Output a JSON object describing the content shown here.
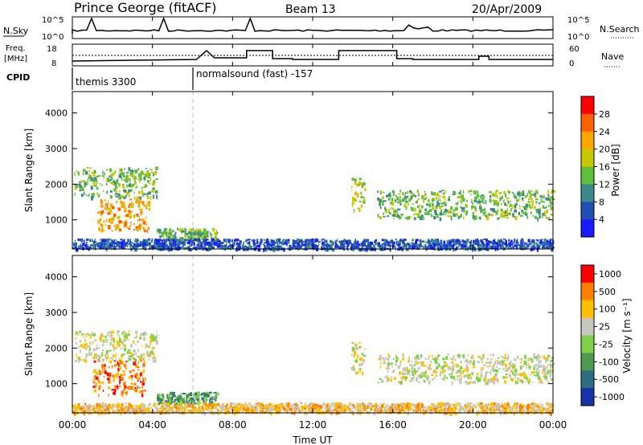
{
  "header": {
    "station": "Prince George (fitACF)",
    "beam": "Beam 13",
    "date": "20/Apr/2009"
  },
  "summary": {
    "nsky_label": "N.Sky",
    "nsky_ticks": [
      "10^5",
      "10^0"
    ],
    "nsearch_label": "N.Search",
    "nsearch_ticks": [
      "10^5",
      "10^0"
    ],
    "freq_label_1": "Freq.",
    "freq_label_2": "[MHz]",
    "freq_ticks": [
      "18",
      "8"
    ],
    "nave_label": "Nave",
    "nave_ticks": [
      "60",
      "0"
    ],
    "cpid_label": "CPID",
    "cpid_modes": [
      {
        "name": "themis 3300",
        "start_hour": 0
      },
      {
        "name": "normalsound (fast) -157",
        "start_hour": 6
      }
    ]
  },
  "x_ticks": [
    "00:00",
    "04:00",
    "08:00",
    "12:00",
    "16:00",
    "20:00",
    "00:00"
  ],
  "x_label": "Time UT",
  "power_panel": {
    "ylabel": "Slant Range [km]",
    "yticks": [
      "1000",
      "2000",
      "3000",
      "4000"
    ],
    "colorbar_label": "Power [dB]",
    "colorbar_ticks": [
      "4",
      "8",
      "12",
      "16",
      "20",
      "24",
      "28"
    ]
  },
  "velocity_panel": {
    "ylabel": "Slant Range [km]",
    "yticks": [
      "1000",
      "2000",
      "3000",
      "4000"
    ],
    "colorbar_label": "Velocity [m s⁻¹]",
    "colorbar_ticks": [
      "1000",
      "500",
      "100",
      "25",
      "-25",
      "-100",
      "-500",
      "-1000"
    ]
  },
  "colors": {
    "power_scale": [
      "#1a1aff",
      "#1f4fb0",
      "#3a8a8a",
      "#5fbf3c",
      "#c8c800",
      "#ffa500",
      "#ff6000",
      "#ff0000"
    ],
    "velocity_scale": [
      "#1830a8",
      "#2f6e7e",
      "#4f9a4f",
      "#7fd04a",
      "#c8c8c0",
      "#ffc000",
      "#ff8000",
      "#ff0000"
    ]
  },
  "chart_data": {
    "type": "heatmap",
    "x_unit": "hours UT",
    "xlim": [
      0,
      24
    ],
    "ylim": [
      180,
      4600
    ],
    "y_unit": "km",
    "power_regions": [
      {
        "t0": 0.1,
        "t1": 4.2,
        "r0": 1650,
        "r1": 2500,
        "level": 3
      },
      {
        "t0": 1.2,
        "t1": 3.8,
        "r0": 700,
        "r1": 1600,
        "level": 5
      },
      {
        "t0": 4.2,
        "t1": 7.2,
        "r0": 450,
        "r1": 780,
        "level": 3
      },
      {
        "t0": 13.9,
        "t1": 14.6,
        "r0": 1300,
        "r1": 2200,
        "level": 4
      },
      {
        "t0": 15.2,
        "t1": 24.0,
        "r0": 1050,
        "r1": 1850,
        "level": 3
      },
      {
        "t0": 0.0,
        "t1": 24.0,
        "r0": 200,
        "r1": 480,
        "level": 1
      }
    ],
    "velocity_regions": [
      {
        "t0": 0.1,
        "t1": 4.2,
        "r0": 1650,
        "r1": 2500,
        "level": 4
      },
      {
        "t0": 1.0,
        "t1": 3.6,
        "r0": 700,
        "r1": 1700,
        "level": 6
      },
      {
        "t0": 4.2,
        "t1": 7.2,
        "r0": 450,
        "r1": 780,
        "level": 2
      },
      {
        "t0": 13.9,
        "t1": 14.6,
        "r0": 1300,
        "r1": 2200,
        "level": 4
      },
      {
        "t0": 15.2,
        "t1": 24.0,
        "r0": 1050,
        "r1": 1850,
        "level": 4
      },
      {
        "t0": 0.0,
        "t1": 24.0,
        "r0": 200,
        "r1": 480,
        "level": 5
      }
    ]
  }
}
